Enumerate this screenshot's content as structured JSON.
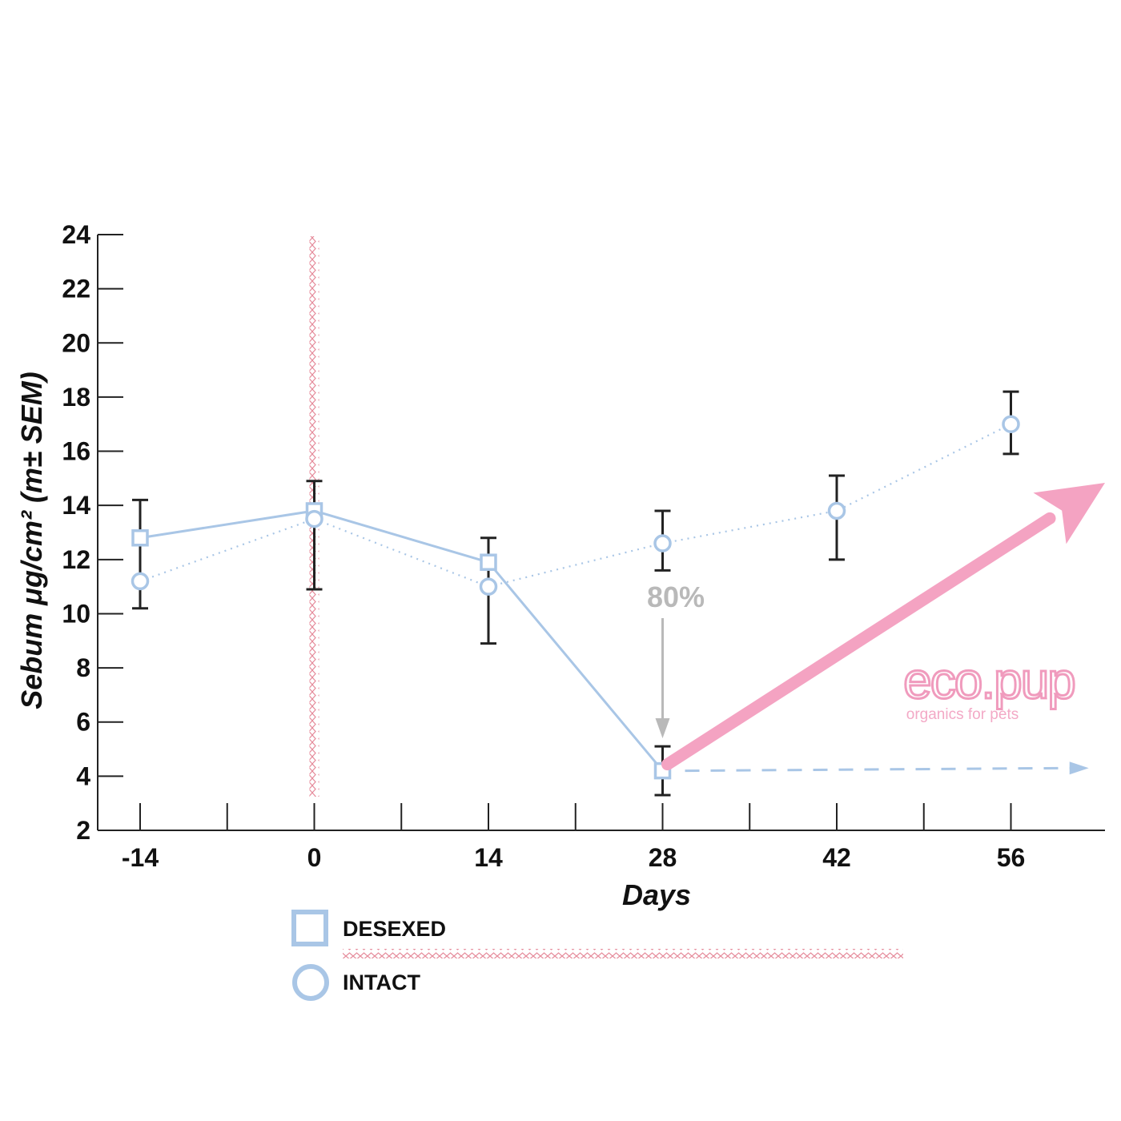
{
  "chart_data": {
    "type": "line",
    "title": "",
    "xlabel": "Days",
    "ylabel": "Sebum  μg/cm² (m± SEM)",
    "x_ticks": [
      "-14",
      "0",
      "14",
      "28",
      "42",
      "56"
    ],
    "x_values": [
      -14,
      0,
      14,
      28,
      42,
      56
    ],
    "xlim": [
      -17.5,
      63
    ],
    "y_ticks": [
      "2",
      "4",
      "6",
      "8",
      "10",
      "12",
      "14",
      "16",
      "18",
      "20",
      "22",
      "24"
    ],
    "ylim": [
      2,
      24
    ],
    "grid": false,
    "legend_position": "bottom-left",
    "series": [
      {
        "name": "DESEXED",
        "marker": "square",
        "line": "solid",
        "color": "#a9c6e6",
        "x": [
          -14,
          0,
          14,
          28
        ],
        "y": [
          12.8,
          13.8,
          11.9,
          4.2
        ],
        "err_low": [
          10.2,
          10.9,
          8.9,
          3.3
        ],
        "err_high": [
          14.2,
          14.9,
          12.8,
          5.1
        ]
      },
      {
        "name": "INTACT",
        "marker": "circle",
        "line": "dotted",
        "color": "#a9c6e6",
        "x": [
          -14,
          0,
          14,
          28,
          42,
          56
        ],
        "y": [
          11.2,
          13.5,
          11.0,
          12.6,
          13.8,
          17.0
        ],
        "err_low": [
          10.2,
          10.9,
          8.9,
          11.6,
          12.0,
          15.9
        ],
        "err_high": [
          14.2,
          14.9,
          12.8,
          13.8,
          15.1,
          18.2
        ]
      }
    ],
    "annotations": {
      "reduction_label": "80%",
      "treatment_start_x": 0,
      "pink_arrow": {
        "from": [
          28,
          4.2
        ],
        "to": [
          63,
          15.0
        ],
        "color": "#f4a3c2"
      },
      "dashed_arrow": {
        "from": [
          28,
          4.2
        ],
        "to": [
          62,
          4.3
        ],
        "color": "#a9c6e6"
      },
      "marker_color": "#e58a9a"
    }
  },
  "logo": {
    "name": "eco.pup",
    "tagline": "organics for pets"
  },
  "legend": {
    "desexed_label": "DESEXED",
    "intact_label": "INTACT"
  }
}
